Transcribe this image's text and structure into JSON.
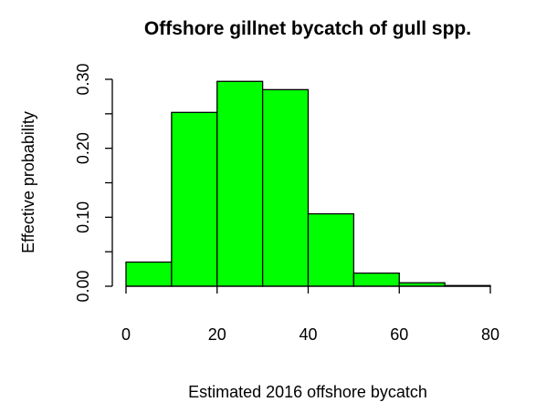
{
  "chart_data": {
    "type": "histogram",
    "title": "Offshore gillnet bycatch of  gull spp.",
    "xlabel": "Estimated 2016 offshore bycatch",
    "ylabel": "Effective probability",
    "bins": [
      0,
      10,
      20,
      30,
      40,
      50,
      60,
      70,
      80
    ],
    "values": [
      0.035,
      0.252,
      0.297,
      0.285,
      0.105,
      0.019,
      0.005,
      0.001
    ],
    "color": "#00ff00",
    "xlim": [
      0,
      80
    ],
    "xticks": [
      0,
      20,
      40,
      60,
      80
    ],
    "ylim": [
      0,
      0.3
    ],
    "yticks": [
      {
        "value": 0,
        "label": "0.00"
      },
      {
        "value": 0.05,
        "label": null
      },
      {
        "value": 0.1,
        "label": "0.10"
      },
      {
        "value": 0.15,
        "label": null
      },
      {
        "value": 0.2,
        "label": "0.20"
      },
      {
        "value": 0.25,
        "label": null
      },
      {
        "value": 0.3,
        "label": "0.30"
      }
    ],
    "grid": false
  }
}
